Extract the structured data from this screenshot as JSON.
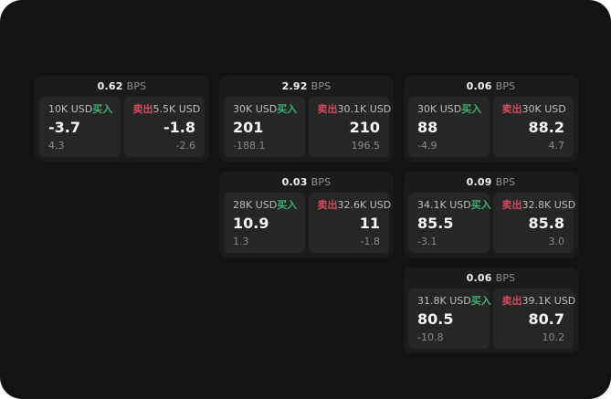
{
  "labels": {
    "bps": "BPS",
    "buy": "买入",
    "sell": "卖出"
  },
  "colors": {
    "page_bg": "#131313",
    "card_bg": "#1b1b1b",
    "panel_bg": "#262626",
    "buy_accent": "#3fae73",
    "sell_accent": "#cf4c61"
  },
  "cards": [
    {
      "bps": "0.62",
      "buy": {
        "amount": "10K USD",
        "price": "-3.7",
        "delta": "4.3"
      },
      "sell": {
        "amount": "5.5K USD",
        "price": "-1.8",
        "delta": "-2.6"
      }
    },
    {
      "bps": "2.92",
      "buy": {
        "amount": "30K USD",
        "price": "201",
        "delta": "-188.1"
      },
      "sell": {
        "amount": "30.1K USD",
        "price": "210",
        "delta": "196.5"
      }
    },
    {
      "bps": "0.06",
      "buy": {
        "amount": "30K USD",
        "price": "88",
        "delta": "-4.9"
      },
      "sell": {
        "amount": "30K USD",
        "price": "88.2",
        "delta": "4.7"
      }
    },
    {
      "bps": "0.03",
      "buy": {
        "amount": "28K USD",
        "price": "10.9",
        "delta": "1.3"
      },
      "sell": {
        "amount": "32.6K USD",
        "price": "11",
        "delta": "-1.8"
      }
    },
    {
      "bps": "0.09",
      "buy": {
        "amount": "34.1K USD",
        "price": "85.5",
        "delta": "-3.1"
      },
      "sell": {
        "amount": "32.8K USD",
        "price": "85.8",
        "delta": "3.0"
      }
    },
    {
      "bps": "0.06",
      "buy": {
        "amount": "31.8K USD",
        "price": "80.5",
        "delta": "-10.8"
      },
      "sell": {
        "amount": "39.1K USD",
        "price": "80.7",
        "delta": "10.2"
      }
    }
  ]
}
